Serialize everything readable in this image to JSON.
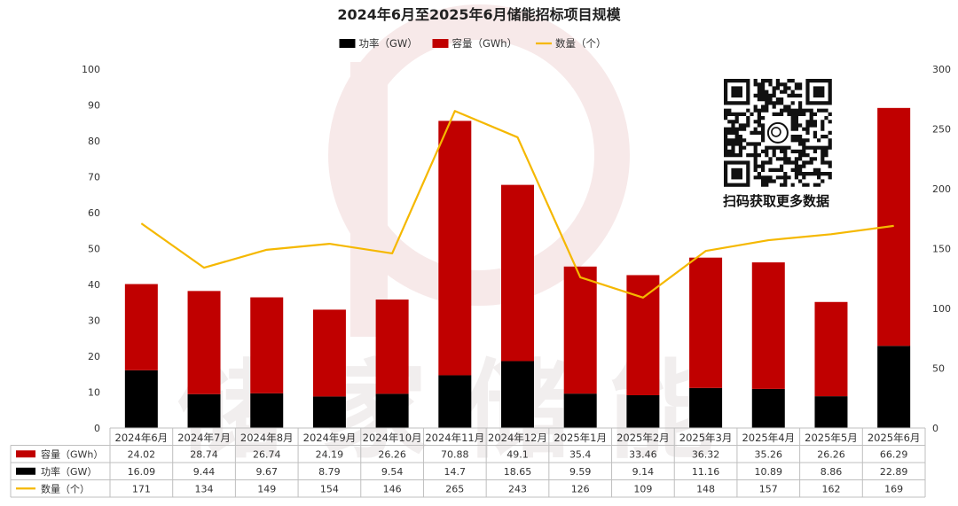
{
  "chart_data": {
    "type": "bar",
    "stacked": true,
    "title": "2024年6月至2025年6月储能招标项目规模",
    "categories": [
      "2024年6月",
      "2024年7月",
      "2024年8月",
      "2024年9月",
      "2024年10月",
      "2024年11月",
      "2024年12月",
      "2025年1月",
      "2025年2月",
      "2025年3月",
      "2025年4月",
      "2025年5月",
      "2025年6月"
    ],
    "series": [
      {
        "name": "功率（GW）",
        "kind": "bar",
        "axis": "left",
        "color": "#000000",
        "values": [
          16.09,
          9.44,
          9.67,
          8.79,
          9.54,
          14.7,
          18.65,
          9.59,
          9.14,
          11.16,
          10.89,
          8.86,
          22.89
        ],
        "display": [
          "16.09",
          "9.44",
          "9.67",
          "8.79",
          "9.54",
          "14.7",
          "18.65",
          "9.59",
          "9.14",
          "11.16",
          "10.89",
          "8.86",
          "22.89"
        ]
      },
      {
        "name": "容量（GWh）",
        "kind": "bar",
        "axis": "left",
        "color": "#c00000",
        "values": [
          24.02,
          28.74,
          26.74,
          24.19,
          26.26,
          70.88,
          49.1,
          35.4,
          33.46,
          36.32,
          35.26,
          26.26,
          66.29
        ],
        "display": [
          "24.02",
          "28.74",
          "26.74",
          "24.19",
          "26.26",
          "70.88",
          "49.1",
          "35.4",
          "33.46",
          "36.32",
          "35.26",
          "26.26",
          "66.29"
        ]
      },
      {
        "name": "数量（个）",
        "kind": "line",
        "axis": "right",
        "color": "#f5b800",
        "values": [
          171,
          134,
          149,
          154,
          146,
          265,
          243,
          126,
          109,
          148,
          157,
          162,
          169
        ],
        "display": [
          "171",
          "134",
          "149",
          "154",
          "146",
          "265",
          "243",
          "126",
          "109",
          "148",
          "157",
          "162",
          "169"
        ]
      }
    ],
    "legend_order": [
      0,
      1,
      2
    ],
    "table_row_order": [
      1,
      0,
      2
    ],
    "y_left": {
      "min": 0,
      "max": 100,
      "ticks": [
        "0",
        "10",
        "20",
        "30",
        "40",
        "50",
        "60",
        "70",
        "80",
        "90",
        "100"
      ]
    },
    "y_right": {
      "min": 0,
      "max": 300,
      "ticks": [
        "0",
        "50",
        "100",
        "150",
        "200",
        "250",
        "300"
      ]
    },
    "legend_position": "top-center",
    "grid": false,
    "data_table": true
  },
  "qr": {
    "caption": "扫码获取更多数据"
  },
  "watermark": {
    "text": "储能"
  }
}
